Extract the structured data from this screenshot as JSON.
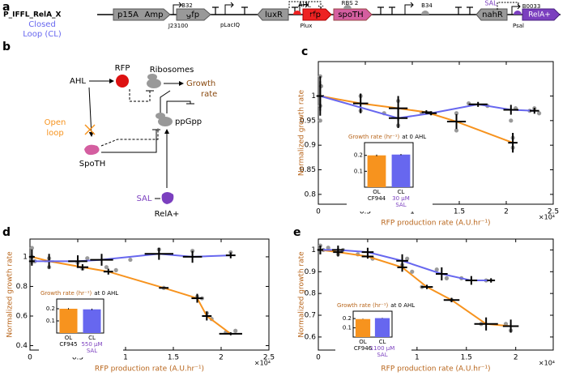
{
  "panel_labels": [
    "a",
    "b",
    "c",
    "d",
    "e"
  ],
  "construct": {
    "name": "P_IFFL_RelA_X",
    "subtitle": [
      "Closed",
      "Loop (CL)"
    ],
    "parts": [
      "p15A",
      "Amp",
      "gfp",
      "luxR",
      "rfp",
      "spoTH",
      "nahR",
      "RelA+"
    ],
    "annotations": [
      "B32",
      "J23100",
      "pLacIQ",
      "AHL",
      "Plux",
      "B34",
      "RBS 2",
      "B34",
      "SAL",
      "Psal",
      "B0033"
    ]
  },
  "network": {
    "nodes": [
      "AHL",
      "RFP",
      "Ribosomes",
      "Growth",
      "rate",
      "ppGpp",
      "SpoTH",
      "SAL",
      "RelA+"
    ],
    "open_loop": [
      "Open",
      "loop"
    ]
  },
  "chart_data": [
    {
      "type": "line",
      "xlabel": "RFP production rate (A.U.hr⁻¹)",
      "ylabel": "Normalized growth rate",
      "x_multiplier": "×10⁴",
      "xlim": [
        0,
        2.5
      ],
      "xticks": [
        0,
        0.5,
        1,
        1.5,
        2,
        2.5
      ],
      "ylim": [
        0.78,
        1.07
      ],
      "yticks": [
        0.8,
        0.85,
        0.9,
        0.95,
        1
      ],
      "series": [
        {
          "style": "points",
          "color": "#9a9a9a",
          "x": [
            0.02,
            0.02,
            0.03,
            0.02,
            0.45,
            0.45,
            0.85,
            0.85,
            0.7,
            1.1,
            1.2,
            1.47,
            1.47,
            1.6,
            1.8,
            2.05,
            2.07,
            2.07,
            2.1,
            2.25,
            2.35,
            2.3
          ],
          "values": [
            1.04,
            0.95,
            1.02,
            0.98,
            1.0,
            0.97,
            0.99,
            0.94,
            0.965,
            0.966,
            0.965,
            0.965,
            0.93,
            0.985,
            0.98,
            0.95,
            0.915,
            0.895,
            0.975,
            0.97,
            0.965,
            0.975
          ]
        },
        {
          "style": "line",
          "color": "#f7931e",
          "x": [
            0.02,
            0.45,
            0.85,
            1.15,
            1.47,
            2.07
          ],
          "values": [
            1.0,
            0.985,
            0.975,
            0.967,
            0.948,
            0.905
          ],
          "xerr": [
            0.04,
            0.08,
            0.1,
            0.05,
            0.1,
            0.05
          ],
          "yerr": [
            0.04,
            0.02,
            0.025,
            0.004,
            0.015,
            0.02
          ]
        },
        {
          "style": "line",
          "color": "#6767ef",
          "x": [
            0.02,
            0.85,
            1.2,
            1.7,
            2.05,
            2.3
          ],
          "values": [
            1.0,
            0.955,
            0.965,
            0.983,
            0.972,
            0.97
          ],
          "xerr": [
            0.03,
            0.1,
            0.06,
            0.1,
            0.08,
            0.05
          ],
          "yerr": [
            0.03,
            0.02,
            0.004,
            0.005,
            0.01,
            0.006
          ]
        }
      ]
    },
    {
      "type": "bar",
      "title": "Growth rate (hr⁻¹)",
      "title_suffix": "at 0 AHL",
      "categories": [
        "OL",
        "CL"
      ],
      "sublabels": [
        [
          "CF944"
        ],
        [
          "30 µM",
          "SAL"
        ]
      ],
      "colors": [
        "#f7931e",
        "#6767ef"
      ],
      "values": [
        0.2,
        0.205
      ],
      "errors": [
        0.005,
        0.004
      ],
      "ylim": [
        0,
        0.28
      ],
      "yticks": [
        0.1,
        0.2
      ]
    },
    {
      "type": "line",
      "xlabel": "RFP production rate (A.U.hr⁻¹)",
      "ylabel": "Normalized growth rate",
      "x_multiplier": "×10⁴",
      "xlim": [
        0,
        2.5
      ],
      "xticks": [
        0,
        0.5,
        1,
        1.5,
        2,
        2.5
      ],
      "ylim": [
        0.37,
        1.12
      ],
      "yticks": [
        0.4,
        0.6,
        0.8,
        1
      ],
      "series": [
        {
          "style": "points",
          "color": "#9a9a9a",
          "x": [
            0.02,
            0.02,
            0.05,
            0.2,
            0.2,
            0.5,
            0.55,
            0.6,
            0.8,
            0.9,
            1.35,
            1.4,
            1.7,
            1.75,
            1.8,
            1.85,
            1.9,
            2.05,
            2.15,
            2.1,
            1.05
          ],
          "values": [
            1.06,
            1.0,
            0.97,
            0.99,
            0.93,
            0.96,
            0.92,
            0.99,
            0.93,
            0.91,
            1.05,
            0.79,
            1.04,
            0.73,
            0.72,
            0.62,
            0.58,
            0.49,
            0.5,
            1.03,
            0.98
          ]
        },
        {
          "style": "line",
          "color": "#f7931e",
          "x": [
            0.02,
            0.2,
            0.55,
            0.82,
            1.4,
            1.75,
            1.85,
            2.1
          ],
          "values": [
            1.0,
            0.97,
            0.93,
            0.9,
            0.79,
            0.72,
            0.6,
            0.48
          ],
          "xerr": [
            0.03,
            0.05,
            0.06,
            0.05,
            0.05,
            0.06,
            0.05,
            0.12
          ],
          "yerr": [
            0.05,
            0.05,
            0.02,
            0.02,
            0.005,
            0.03,
            0.03,
            0.01
          ]
        },
        {
          "style": "line",
          "color": "#6767ef",
          "x": [
            0.02,
            0.5,
            0.75,
            1.35,
            1.7,
            2.1
          ],
          "values": [
            0.97,
            0.97,
            0.98,
            1.02,
            1.0,
            1.01
          ],
          "xerr": [
            0.03,
            0.1,
            0.12,
            0.15,
            0.1,
            0.05
          ],
          "yerr": [
            0.03,
            0.04,
            0.04,
            0.04,
            0.04,
            0.02
          ]
        }
      ]
    },
    {
      "type": "bar",
      "title": "Growth rate (hr⁻¹)",
      "title_suffix": "at 0 AHL",
      "categories": [
        "OL",
        "CL"
      ],
      "sublabels": [
        [
          "CF945"
        ],
        [
          "550 µM",
          "SAL"
        ]
      ],
      "colors": [
        "#f7931e",
        "#6767ef"
      ],
      "values": [
        0.2,
        0.195
      ],
      "errors": [
        0.005,
        0.006
      ],
      "ylim": [
        0,
        0.28
      ],
      "yticks": [
        0.1,
        0.2
      ]
    },
    {
      "type": "line",
      "xlabel": "RFP production rate (A.U.hr⁻¹)",
      "ylabel": "Normalized growth rate",
      "x_multiplier": "×10⁴",
      "xlim": [
        0,
        2.38
      ],
      "xticks": [
        0,
        0.5,
        1,
        1.5,
        2
      ],
      "ylim": [
        0.54,
        1.05
      ],
      "yticks": [
        0.6,
        0.7,
        0.8,
        0.9,
        1
      ],
      "series": [
        {
          "style": "points",
          "color": "#9a9a9a",
          "x": [
            0.02,
            0.05,
            0.1,
            0.2,
            0.25,
            0.4,
            0.55,
            0.85,
            0.9,
            0.95,
            1.05,
            1.2,
            1.3,
            1.35,
            1.45,
            1.65,
            1.7,
            1.9,
            1.95
          ],
          "values": [
            1.02,
            1.0,
            1.01,
            0.98,
            1.0,
            0.98,
            0.96,
            0.93,
            0.96,
            0.9,
            0.83,
            0.91,
            0.87,
            0.77,
            0.87,
            0.66,
            0.86,
            0.66,
            0.63
          ]
        },
        {
          "style": "line",
          "color": "#f7931e",
          "x": [
            0.02,
            0.2,
            0.5,
            0.85,
            1.1,
            1.35,
            1.7,
            1.95
          ],
          "values": [
            1.0,
            0.99,
            0.97,
            0.92,
            0.83,
            0.77,
            0.66,
            0.65
          ],
          "xerr": [
            0.03,
            0.05,
            0.06,
            0.05,
            0.06,
            0.08,
            0.12,
            0.08
          ],
          "yerr": [
            0.02,
            0.02,
            0.01,
            0.02,
            0.01,
            0.01,
            0.03,
            0.03
          ]
        },
        {
          "style": "line",
          "color": "#6767ef",
          "x": [
            0.02,
            0.2,
            0.5,
            0.85,
            1.25,
            1.55,
            1.75
          ],
          "values": [
            1.0,
            1.0,
            0.99,
            0.95,
            0.89,
            0.86,
            0.86
          ],
          "xerr": [
            0.03,
            0.06,
            0.06,
            0.06,
            0.06,
            0.06,
            0.04
          ],
          "yerr": [
            0.02,
            0.02,
            0.02,
            0.03,
            0.03,
            0.02,
            0.01
          ]
        }
      ]
    },
    {
      "type": "bar",
      "title": "Growth rate (hr⁻¹)",
      "title_suffix": "at 0 AHL",
      "categories": [
        "OL",
        "CL"
      ],
      "sublabels": [
        [
          "CF946"
        ],
        [
          "1100 µM",
          "SAL"
        ]
      ],
      "colors": [
        "#f7931e",
        "#6767ef"
      ],
      "values": [
        0.195,
        0.205
      ],
      "errors": [
        0.003,
        0.003
      ],
      "ylim": [
        0,
        0.28
      ],
      "yticks": [
        0.1,
        0.2
      ]
    }
  ]
}
